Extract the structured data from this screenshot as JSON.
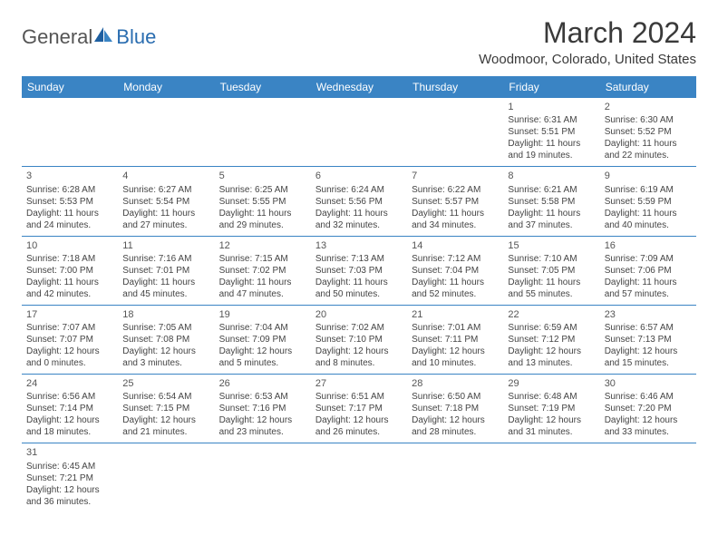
{
  "logo": {
    "general": "General",
    "blue": "Blue"
  },
  "header": {
    "month_title": "March 2024",
    "location": "Woodmoor, Colorado, United States"
  },
  "colors": {
    "header_bg": "#3a84c4",
    "header_fg": "#ffffff",
    "rule": "#3a84c4",
    "text": "#444444"
  },
  "weekdays": [
    "Sunday",
    "Monday",
    "Tuesday",
    "Wednesday",
    "Thursday",
    "Friday",
    "Saturday"
  ],
  "weeks": [
    [
      null,
      null,
      null,
      null,
      null,
      {
        "n": "1",
        "sr": "Sunrise: 6:31 AM",
        "ss": "Sunset: 5:51 PM",
        "dl1": "Daylight: 11 hours",
        "dl2": "and 19 minutes."
      },
      {
        "n": "2",
        "sr": "Sunrise: 6:30 AM",
        "ss": "Sunset: 5:52 PM",
        "dl1": "Daylight: 11 hours",
        "dl2": "and 22 minutes."
      }
    ],
    [
      {
        "n": "3",
        "sr": "Sunrise: 6:28 AM",
        "ss": "Sunset: 5:53 PM",
        "dl1": "Daylight: 11 hours",
        "dl2": "and 24 minutes."
      },
      {
        "n": "4",
        "sr": "Sunrise: 6:27 AM",
        "ss": "Sunset: 5:54 PM",
        "dl1": "Daylight: 11 hours",
        "dl2": "and 27 minutes."
      },
      {
        "n": "5",
        "sr": "Sunrise: 6:25 AM",
        "ss": "Sunset: 5:55 PM",
        "dl1": "Daylight: 11 hours",
        "dl2": "and 29 minutes."
      },
      {
        "n": "6",
        "sr": "Sunrise: 6:24 AM",
        "ss": "Sunset: 5:56 PM",
        "dl1": "Daylight: 11 hours",
        "dl2": "and 32 minutes."
      },
      {
        "n": "7",
        "sr": "Sunrise: 6:22 AM",
        "ss": "Sunset: 5:57 PM",
        "dl1": "Daylight: 11 hours",
        "dl2": "and 34 minutes."
      },
      {
        "n": "8",
        "sr": "Sunrise: 6:21 AM",
        "ss": "Sunset: 5:58 PM",
        "dl1": "Daylight: 11 hours",
        "dl2": "and 37 minutes."
      },
      {
        "n": "9",
        "sr": "Sunrise: 6:19 AM",
        "ss": "Sunset: 5:59 PM",
        "dl1": "Daylight: 11 hours",
        "dl2": "and 40 minutes."
      }
    ],
    [
      {
        "n": "10",
        "sr": "Sunrise: 7:18 AM",
        "ss": "Sunset: 7:00 PM",
        "dl1": "Daylight: 11 hours",
        "dl2": "and 42 minutes."
      },
      {
        "n": "11",
        "sr": "Sunrise: 7:16 AM",
        "ss": "Sunset: 7:01 PM",
        "dl1": "Daylight: 11 hours",
        "dl2": "and 45 minutes."
      },
      {
        "n": "12",
        "sr": "Sunrise: 7:15 AM",
        "ss": "Sunset: 7:02 PM",
        "dl1": "Daylight: 11 hours",
        "dl2": "and 47 minutes."
      },
      {
        "n": "13",
        "sr": "Sunrise: 7:13 AM",
        "ss": "Sunset: 7:03 PM",
        "dl1": "Daylight: 11 hours",
        "dl2": "and 50 minutes."
      },
      {
        "n": "14",
        "sr": "Sunrise: 7:12 AM",
        "ss": "Sunset: 7:04 PM",
        "dl1": "Daylight: 11 hours",
        "dl2": "and 52 minutes."
      },
      {
        "n": "15",
        "sr": "Sunrise: 7:10 AM",
        "ss": "Sunset: 7:05 PM",
        "dl1": "Daylight: 11 hours",
        "dl2": "and 55 minutes."
      },
      {
        "n": "16",
        "sr": "Sunrise: 7:09 AM",
        "ss": "Sunset: 7:06 PM",
        "dl1": "Daylight: 11 hours",
        "dl2": "and 57 minutes."
      }
    ],
    [
      {
        "n": "17",
        "sr": "Sunrise: 7:07 AM",
        "ss": "Sunset: 7:07 PM",
        "dl1": "Daylight: 12 hours",
        "dl2": "and 0 minutes."
      },
      {
        "n": "18",
        "sr": "Sunrise: 7:05 AM",
        "ss": "Sunset: 7:08 PM",
        "dl1": "Daylight: 12 hours",
        "dl2": "and 3 minutes."
      },
      {
        "n": "19",
        "sr": "Sunrise: 7:04 AM",
        "ss": "Sunset: 7:09 PM",
        "dl1": "Daylight: 12 hours",
        "dl2": "and 5 minutes."
      },
      {
        "n": "20",
        "sr": "Sunrise: 7:02 AM",
        "ss": "Sunset: 7:10 PM",
        "dl1": "Daylight: 12 hours",
        "dl2": "and 8 minutes."
      },
      {
        "n": "21",
        "sr": "Sunrise: 7:01 AM",
        "ss": "Sunset: 7:11 PM",
        "dl1": "Daylight: 12 hours",
        "dl2": "and 10 minutes."
      },
      {
        "n": "22",
        "sr": "Sunrise: 6:59 AM",
        "ss": "Sunset: 7:12 PM",
        "dl1": "Daylight: 12 hours",
        "dl2": "and 13 minutes."
      },
      {
        "n": "23",
        "sr": "Sunrise: 6:57 AM",
        "ss": "Sunset: 7:13 PM",
        "dl1": "Daylight: 12 hours",
        "dl2": "and 15 minutes."
      }
    ],
    [
      {
        "n": "24",
        "sr": "Sunrise: 6:56 AM",
        "ss": "Sunset: 7:14 PM",
        "dl1": "Daylight: 12 hours",
        "dl2": "and 18 minutes."
      },
      {
        "n": "25",
        "sr": "Sunrise: 6:54 AM",
        "ss": "Sunset: 7:15 PM",
        "dl1": "Daylight: 12 hours",
        "dl2": "and 21 minutes."
      },
      {
        "n": "26",
        "sr": "Sunrise: 6:53 AM",
        "ss": "Sunset: 7:16 PM",
        "dl1": "Daylight: 12 hours",
        "dl2": "and 23 minutes."
      },
      {
        "n": "27",
        "sr": "Sunrise: 6:51 AM",
        "ss": "Sunset: 7:17 PM",
        "dl1": "Daylight: 12 hours",
        "dl2": "and 26 minutes."
      },
      {
        "n": "28",
        "sr": "Sunrise: 6:50 AM",
        "ss": "Sunset: 7:18 PM",
        "dl1": "Daylight: 12 hours",
        "dl2": "and 28 minutes."
      },
      {
        "n": "29",
        "sr": "Sunrise: 6:48 AM",
        "ss": "Sunset: 7:19 PM",
        "dl1": "Daylight: 12 hours",
        "dl2": "and 31 minutes."
      },
      {
        "n": "30",
        "sr": "Sunrise: 6:46 AM",
        "ss": "Sunset: 7:20 PM",
        "dl1": "Daylight: 12 hours",
        "dl2": "and 33 minutes."
      }
    ],
    [
      {
        "n": "31",
        "sr": "Sunrise: 6:45 AM",
        "ss": "Sunset: 7:21 PM",
        "dl1": "Daylight: 12 hours",
        "dl2": "and 36 minutes."
      },
      null,
      null,
      null,
      null,
      null,
      null
    ]
  ]
}
